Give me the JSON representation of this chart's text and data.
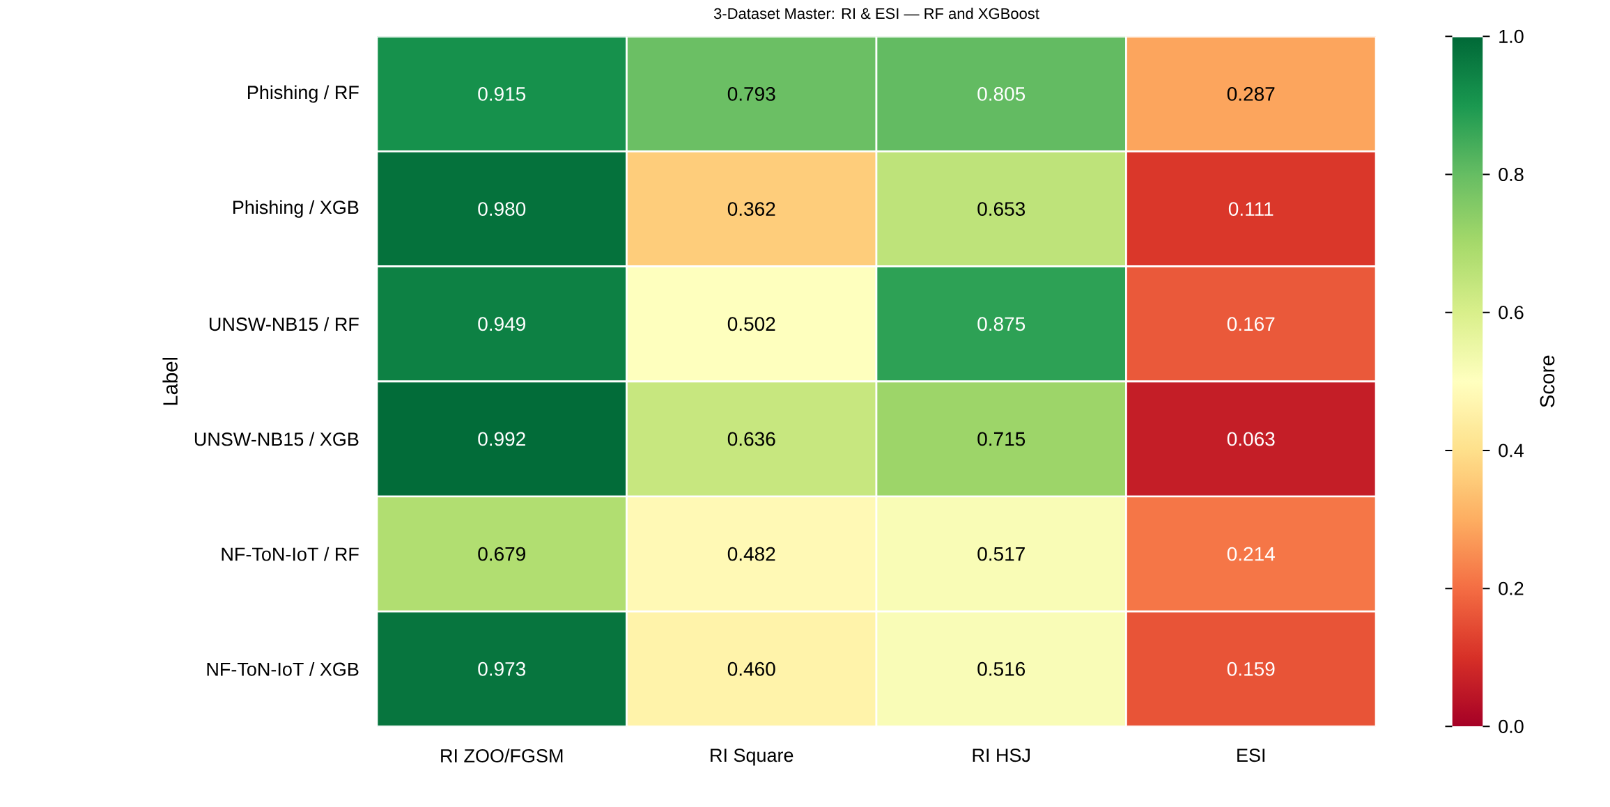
{
  "chart_data": {
    "type": "heatmap",
    "title": "3-Dataset Master: RI & ESI — RF and XGBoost",
    "ylabel": "Label",
    "clabel": "Score",
    "categories": [
      "RI ZOO/FGSM",
      "RI Square",
      "RI HSJ",
      "ESI"
    ],
    "y_categories": [
      "Phishing / RF",
      "Phishing / XGB",
      "UNSW-NB15 / RF",
      "UNSW-NB15 / XGB",
      "NF-ToN-IoT / RF",
      "NF-ToN-IoT / XGB"
    ],
    "cells": [
      [
        0.915,
        0.793,
        0.805,
        0.287
      ],
      [
        0.98,
        0.362,
        0.653,
        0.111
      ],
      [
        0.949,
        0.502,
        0.875,
        0.167
      ],
      [
        0.992,
        0.636,
        0.715,
        0.063
      ],
      [
        0.679,
        0.482,
        0.517,
        0.214
      ],
      [
        0.973,
        0.46,
        0.516,
        0.159
      ]
    ],
    "cell_labels": [
      [
        "0.915",
        "0.793",
        "0.805",
        "0.287"
      ],
      [
        "0.980",
        "0.362",
        "0.653",
        "0.111"
      ],
      [
        "0.949",
        "0.502",
        "0.875",
        "0.167"
      ],
      [
        "0.992",
        "0.636",
        "0.715",
        "0.063"
      ],
      [
        "0.679",
        "0.482",
        "0.517",
        "0.214"
      ],
      [
        "0.973",
        "0.460",
        "0.516",
        "0.159"
      ]
    ],
    "clim": [
      0,
      1
    ],
    "cticks": [
      {
        "value": 0,
        "label": "0.0"
      },
      {
        "value": 0.2,
        "label": "0.2"
      },
      {
        "value": 0.4,
        "label": "0.4"
      },
      {
        "value": 0.6,
        "label": "0.6"
      },
      {
        "value": 0.8,
        "label": "0.8"
      },
      {
        "value": 1,
        "label": "1.0"
      }
    ]
  }
}
